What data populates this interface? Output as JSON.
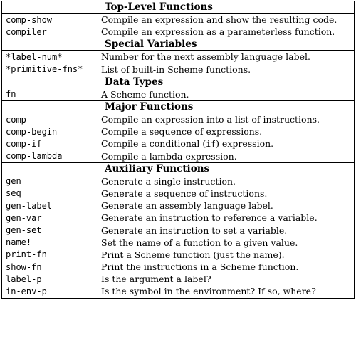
{
  "sections": [
    {
      "title": "Top-Level Functions",
      "rows": [
        {
          "name": "comp-show",
          "desc": "Compile an expression and show the resulting code."
        },
        {
          "name": "compiler",
          "desc": "Compile an expression as a parameterless function."
        }
      ]
    },
    {
      "title": "Special Variables",
      "rows": [
        {
          "name": "*label-num*",
          "desc": "Number for the next assembly language label."
        },
        {
          "name": "*primitive-fns*",
          "desc": "List of built-in Scheme functions."
        }
      ]
    },
    {
      "title": "Data Types",
      "rows": [
        {
          "name": "fn",
          "desc": "A Scheme function."
        }
      ]
    },
    {
      "title": "Major Functions",
      "rows": [
        {
          "name": "comp",
          "desc": "Compile an expression into a list of instructions."
        },
        {
          "name": "comp-begin",
          "desc": "Compile a sequence of expressions."
        },
        {
          "name": "comp-if",
          "desc_pre": "Compile a conditional (",
          "desc_code": "if",
          "desc_post": ") expression."
        },
        {
          "name": "comp-lambda",
          "desc": "Compile a lambda expression."
        }
      ]
    },
    {
      "title": "Auxiliary Functions",
      "rows": [
        {
          "name": "gen",
          "desc": "Generate a single instruction."
        },
        {
          "name": "seq",
          "desc": "Generate a sequence of instructions."
        },
        {
          "name": "gen-label",
          "desc": "Generate an assembly language label."
        },
        {
          "name": "gen-var",
          "desc": "Generate an instruction to reference a variable."
        },
        {
          "name": "gen-set",
          "desc": "Generate an instruction to set a variable."
        },
        {
          "name": "name!",
          "desc": "Set the name of a function to a given value."
        },
        {
          "name": "print-fn",
          "desc": "Print a Scheme function (just the name)."
        },
        {
          "name": "show-fn",
          "desc": "Print the instructions in a Scheme function."
        },
        {
          "name": "label-p",
          "desc": "Is the argument a label?"
        },
        {
          "name": "in-env-p",
          "desc": "Is the symbol in the environment? If so, where?"
        }
      ]
    }
  ]
}
